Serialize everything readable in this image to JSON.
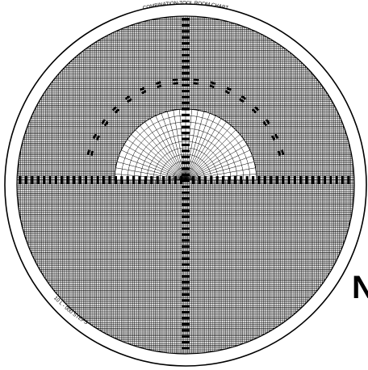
{
  "chart": {
    "title": "COMBINATION-TOOL ROOM CHART",
    "steps_label": "10 L - 000 STEPS",
    "grid": "on",
    "ink_color": "#000000",
    "paper_color": "#ffffff"
  },
  "page_fragment": {
    "letter": "N"
  }
}
